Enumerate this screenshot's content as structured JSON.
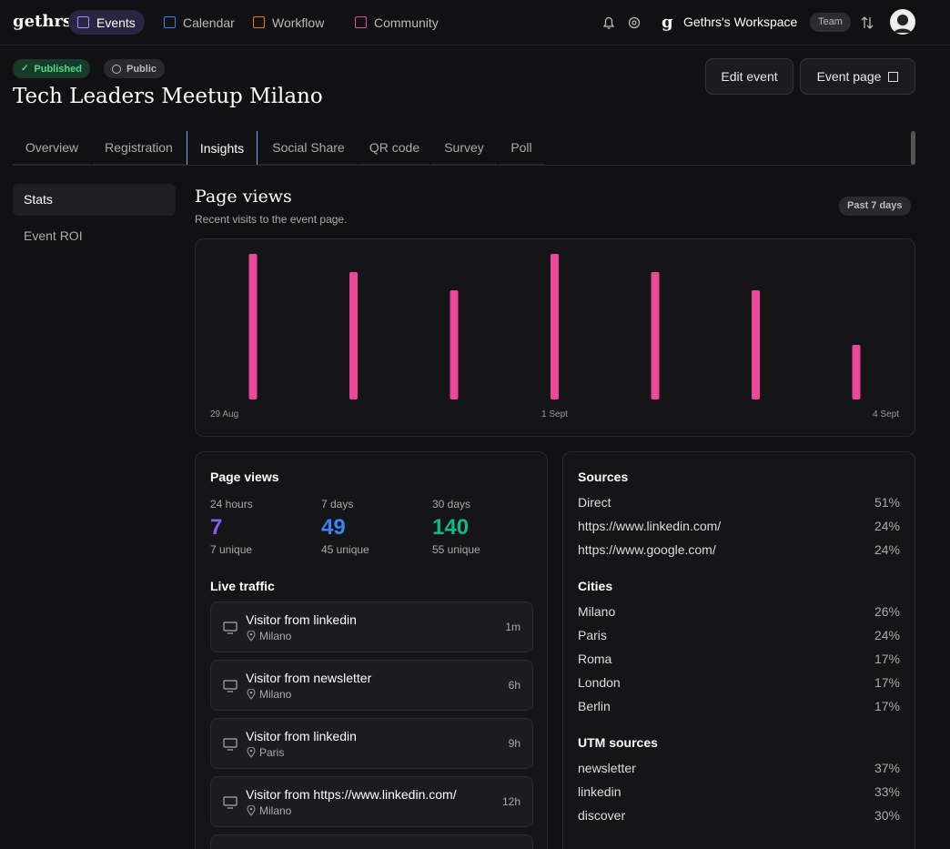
{
  "nav": {
    "brand": "gethrs",
    "items": [
      "Events",
      "Calendar",
      "Workflow",
      "Community"
    ],
    "workspace": "Gethrs's Workspace",
    "workspace_badge": "Team"
  },
  "event": {
    "status": "Published",
    "visibility": "Public",
    "title": "Tech Leaders Meetup Milano",
    "actions": [
      "Edit event",
      "Event page"
    ]
  },
  "tabs": [
    "Overview",
    "Registration",
    "Insights",
    "Social Share",
    "QR code",
    "Survey",
    "Poll"
  ],
  "sidebar": [
    "Stats",
    "Event ROI"
  ],
  "chart_data": {
    "type": "bar",
    "title": "Page views",
    "subtitle": "Recent visits to the event page.",
    "period": "Past 7 days",
    "categories": [
      "29 Aug",
      null,
      null,
      "1 Sept",
      null,
      null,
      "4 Sept"
    ],
    "values": [
      8,
      7,
      6,
      8,
      7,
      6,
      3
    ],
    "color": "#ec4899"
  },
  "stats": {
    "title": "Page views",
    "items": [
      {
        "label": "24 hours",
        "value": 7,
        "unique": "7 unique",
        "color": "#8b5cf6"
      },
      {
        "label": "7 days",
        "value": 49,
        "unique": "45 unique",
        "color": "#3b82f6"
      },
      {
        "label": "30 days",
        "value": 140,
        "unique": "55 unique",
        "color": "#10b981"
      }
    ]
  },
  "live_traffic": {
    "title": "Live traffic",
    "items": [
      {
        "visitor": "Visitor from linkedin",
        "location": "Milano",
        "time": "1m"
      },
      {
        "visitor": "Visitor from newsletter",
        "location": "Milano",
        "time": "6h"
      },
      {
        "visitor": "Visitor from linkedin",
        "location": "Paris",
        "time": "9h"
      },
      {
        "visitor": "Visitor from https://www.linkedin.com/",
        "location": "Milano",
        "time": "12h"
      }
    ]
  },
  "breakdowns": [
    {
      "title": "Sources",
      "rows": [
        [
          "Direct",
          "51%"
        ],
        [
          "https://www.linkedin.com/",
          "24%"
        ],
        [
          "https://www.google.com/",
          "24%"
        ]
      ]
    },
    {
      "title": "Cities",
      "rows": [
        [
          "Milano",
          "26%"
        ],
        [
          "Paris",
          "24%"
        ],
        [
          "Roma",
          "17%"
        ],
        [
          "London",
          "17%"
        ],
        [
          "Berlin",
          "17%"
        ]
      ]
    },
    {
      "title": "UTM sources",
      "rows": [
        [
          "newsletter",
          "37%"
        ],
        [
          "linkedin",
          "33%"
        ],
        [
          "discover",
          "30%"
        ]
      ]
    }
  ]
}
